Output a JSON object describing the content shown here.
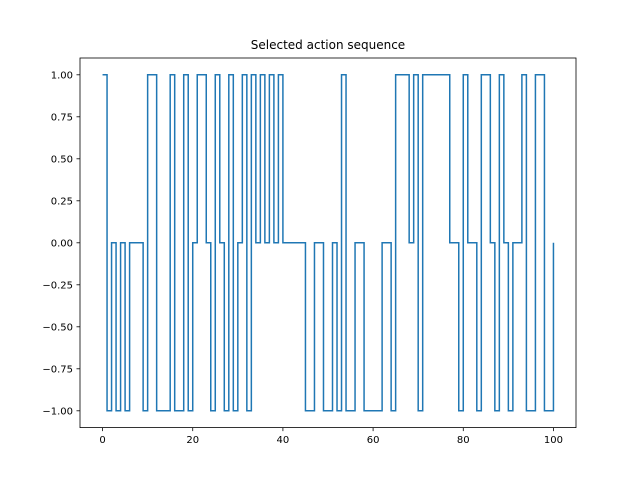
{
  "chart_data": {
    "type": "line",
    "title": "Selected action sequence",
    "xlabel": "",
    "ylabel": "",
    "xlim": [
      -5,
      105
    ],
    "ylim": [
      -1.1,
      1.1
    ],
    "grid": false,
    "step": "post",
    "line_color": "#1f77b4",
    "x_ticks": [
      0,
      20,
      40,
      60,
      80,
      100
    ],
    "x_tick_labels": [
      "0",
      "20",
      "40",
      "60",
      "80",
      "100"
    ],
    "y_ticks": [
      1.0,
      0.75,
      0.5,
      0.25,
      0.0,
      -0.25,
      -0.5,
      -0.75,
      -1.0
    ],
    "y_tick_labels": [
      "1.00",
      "0.75",
      "0.50",
      "0.25",
      "0.00",
      "−0.25",
      "−0.50",
      "−0.75",
      "−1.00"
    ],
    "series": [
      {
        "x": [
          0,
          1,
          2,
          3,
          4,
          5,
          6,
          7,
          8,
          9,
          10,
          11,
          12,
          13,
          14,
          15,
          16,
          17,
          18,
          19,
          20,
          21,
          22,
          23,
          24,
          25,
          26,
          27,
          28,
          29,
          30,
          31,
          32,
          33,
          34,
          35,
          36,
          37,
          38,
          39,
          40,
          41,
          42,
          43,
          44,
          45,
          46,
          47,
          48,
          49,
          50,
          51,
          52,
          53,
          54,
          55,
          56,
          57,
          58,
          59,
          60,
          61,
          62,
          63,
          64,
          65,
          66,
          67,
          68,
          69,
          70,
          71,
          72,
          73,
          74,
          75,
          76,
          77,
          78,
          79,
          80,
          81,
          82,
          83,
          84,
          85,
          86,
          87,
          88,
          89,
          90,
          91,
          92,
          93,
          94,
          95,
          96,
          97,
          98,
          99,
          100
        ],
        "y": [
          1,
          -1,
          0,
          -1,
          0,
          -1,
          0,
          0,
          0,
          -1,
          1,
          1,
          -1,
          -1,
          -1,
          1,
          -1,
          -1,
          1,
          -1,
          0,
          1,
          1,
          0,
          -1,
          1,
          0,
          -1,
          1,
          -1,
          0,
          1,
          -1,
          1,
          0,
          1,
          0,
          1,
          0,
          1,
          0,
          0,
          0,
          0,
          0,
          -1,
          -1,
          0,
          0,
          -1,
          -1,
          0,
          -1,
          1,
          -1,
          -1,
          0,
          0,
          -1,
          -1,
          -1,
          -1,
          0,
          0,
          -1,
          1,
          1,
          1,
          0,
          1,
          -1,
          1,
          1,
          1,
          1,
          1,
          1,
          0,
          0,
          -1,
          1,
          0,
          0,
          -1,
          1,
          1,
          0,
          -1,
          1,
          0,
          -1,
          0,
          0,
          1,
          -1,
          -1,
          1,
          1,
          -1,
          -1,
          0
        ]
      }
    ]
  }
}
